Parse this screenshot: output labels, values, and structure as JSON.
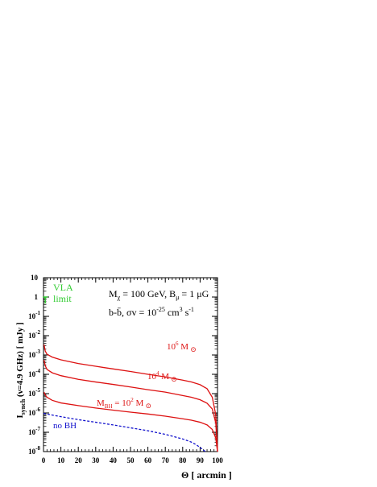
{
  "chart_data": {
    "type": "line",
    "xlabel": "Θ [ arcmin ]",
    "ylabel": "I_synch (ν=4.9 GHz) [ mJy ]",
    "xlim": [
      0,
      100
    ],
    "ylim": [
      1e-08,
      10
    ],
    "yscale": "log",
    "x_ticks": [
      0,
      10,
      20,
      30,
      40,
      50,
      60,
      70,
      80,
      90,
      100
    ],
    "y_tick_exponents": [
      1,
      0,
      -1,
      -2,
      -3,
      -4,
      -5,
      -6,
      -7,
      -8
    ],
    "grid": false,
    "annotations": {
      "params_line1": "M_χ = 100 GeV,  B_μ = 1 μG",
      "params_line2": "b-b̄,  σv = 10^-25 cm^3 s^-1",
      "vla_line1": "VLA",
      "vla_line2": "limit"
    },
    "vla_limit": {
      "x": 1,
      "y": 1.0,
      "color": "#33cc33"
    },
    "series": [
      {
        "name": "10^6 M_⊙",
        "color": "#dd1111",
        "style": "solid",
        "x": [
          0.3,
          1,
          2,
          5,
          10,
          20,
          30,
          40,
          50,
          60,
          70,
          80,
          85,
          90,
          94,
          97,
          99,
          100
        ],
        "y": [
          0.0035,
          0.0016,
          0.0011,
          0.00078,
          0.00056,
          0.00036,
          0.00026,
          0.00019,
          0.00014,
          0.0001,
          7.3e-05,
          5e-05,
          4e-05,
          2.9e-05,
          1.8e-05,
          6.5e-06,
          8e-07,
          1e-08
        ]
      },
      {
        "name": "10^4 M_⊙",
        "color": "#dd1111",
        "style": "solid",
        "x": [
          0.3,
          1,
          2,
          5,
          10,
          20,
          30,
          40,
          50,
          60,
          70,
          80,
          85,
          90,
          94,
          97,
          99,
          100
        ],
        "y": [
          0.00055,
          0.00028,
          0.00018,
          0.00012,
          8.5e-05,
          5.5e-05,
          4e-05,
          3e-05,
          2.2e-05,
          1.6e-05,
          1.2e-05,
          8e-06,
          6.5e-06,
          4.8e-06,
          3.2e-06,
          1.6e-06,
          3e-07,
          1e-08
        ]
      },
      {
        "name": "M_BH = 10^2 M_⊙",
        "color": "#dd1111",
        "style": "solid",
        "x": [
          0.3,
          1,
          2,
          5,
          10,
          20,
          30,
          40,
          50,
          60,
          70,
          80,
          85,
          90,
          94,
          97,
          99,
          100
        ],
        "y": [
          1.2e-05,
          8.5e-06,
          6.5e-06,
          4.5e-06,
          3.3e-06,
          2.4e-06,
          1.8e-06,
          1.4e-06,
          1.1e-06,
          8.8e-07,
          6.8e-07,
          5e-07,
          4.2e-07,
          3.3e-07,
          2.4e-07,
          1.4e-07,
          5e-08,
          1e-08
        ]
      },
      {
        "name": "no BH",
        "color": "#1111cc",
        "style": "dashed",
        "x": [
          0,
          5,
          10,
          20,
          30,
          40,
          50,
          60,
          70,
          80,
          85,
          88,
          91,
          93
        ],
        "y": [
          9.5e-07,
          7.8e-07,
          6.4e-07,
          4.5e-07,
          3.3e-07,
          2.4e-07,
          1.7e-07,
          1.2e-07,
          7.8e-08,
          4.5e-08,
          3.1e-08,
          2.2e-08,
          1.4e-08,
          1e-08
        ]
      }
    ],
    "series_labels": [
      "10^6 M_⊙",
      "10^4 M_⊙",
      "M_BH = 10^2 M_⊙",
      "no BH"
    ]
  }
}
